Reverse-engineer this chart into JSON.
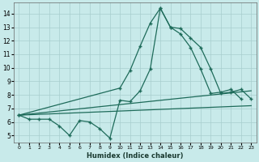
{
  "xlabel": "Humidex (Indice chaleur)",
  "background_color": "#c8eaea",
  "grid_color": "#a8cece",
  "line_color": "#1e6b5a",
  "xlim": [
    -0.5,
    23.5
  ],
  "ylim": [
    4.5,
    14.8
  ],
  "xticks": [
    0,
    1,
    2,
    3,
    4,
    5,
    6,
    7,
    8,
    9,
    10,
    11,
    12,
    13,
    14,
    15,
    16,
    17,
    18,
    19,
    20,
    21,
    22,
    23
  ],
  "yticks": [
    5,
    6,
    7,
    8,
    9,
    10,
    11,
    12,
    13,
    14
  ],
  "series": [
    {
      "x": [
        0,
        1,
        2,
        3,
        4,
        5,
        6,
        7,
        8,
        9,
        10,
        11,
        12,
        13,
        14,
        15,
        16,
        17,
        18,
        19,
        20,
        21,
        22
      ],
      "y": [
        6.5,
        6.2,
        6.2,
        6.2,
        5.7,
        5.0,
        6.1,
        6.0,
        5.5,
        4.8,
        7.6,
        7.5,
        8.3,
        9.9,
        14.4,
        13.0,
        12.5,
        11.5,
        9.9,
        8.1,
        8.2,
        8.4,
        7.7
      ],
      "markers": true
    },
    {
      "x": [
        0,
        10,
        11,
        12,
        13,
        14,
        15,
        16,
        17,
        18,
        19,
        20,
        21,
        22,
        23
      ],
      "y": [
        6.5,
        8.5,
        9.8,
        11.6,
        13.3,
        14.4,
        13.0,
        12.9,
        12.2,
        11.5,
        9.9,
        8.1,
        8.2,
        8.4,
        7.7
      ],
      "markers": true
    },
    {
      "x": [
        0,
        23
      ],
      "y": [
        6.5,
        8.3
      ],
      "markers": false
    },
    {
      "x": [
        0,
        23
      ],
      "y": [
        6.5,
        7.2
      ],
      "markers": false
    }
  ]
}
